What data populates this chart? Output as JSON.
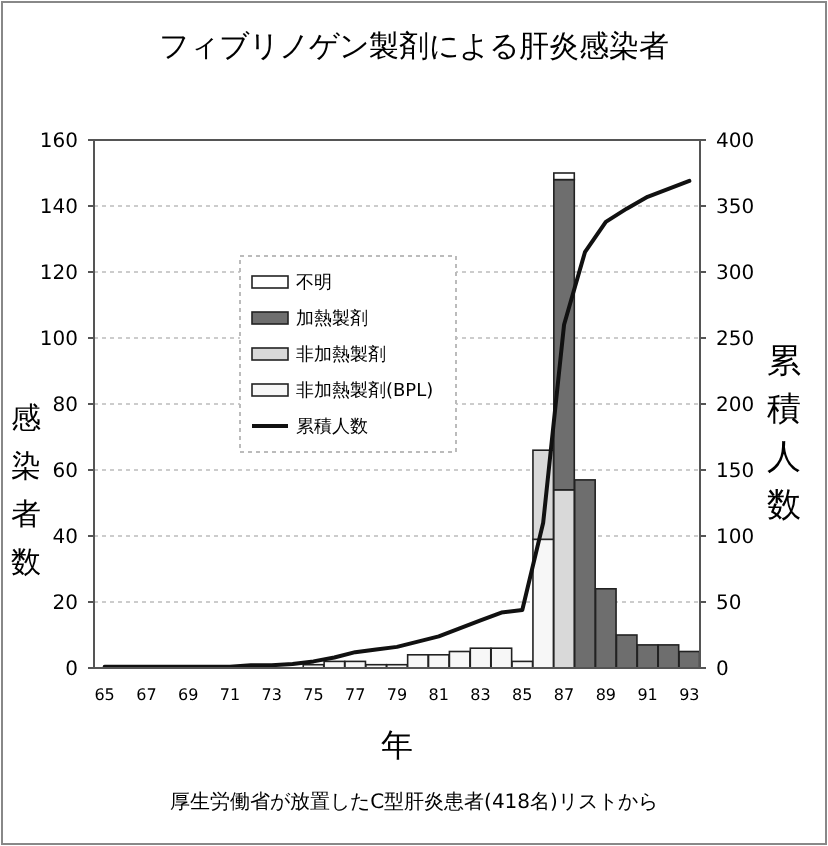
{
  "chart_data": {
    "type": "bar",
    "title": "フィブリノゲン製剤による肝炎感染者",
    "xlabel": "年",
    "ylabel": "感染者数",
    "y2label": "累積人数",
    "stacked": true,
    "grid": "y",
    "legend": "center",
    "categories": [
      "65",
      null,
      "67",
      null,
      "69",
      null,
      "71",
      null,
      "73",
      null,
      "75",
      null,
      "77",
      null,
      "79",
      null,
      "81",
      null,
      "83",
      null,
      "85",
      null,
      "87",
      null,
      "89",
      null,
      "91",
      null,
      "93"
    ],
    "series": [
      {
        "name": "非加熱製剤(BPL)",
        "color": "#f7f7f7",
        "values": [
          0,
          0,
          0,
          0,
          0,
          0,
          0,
          0,
          null,
          null,
          1,
          2,
          2,
          1,
          1,
          4,
          4,
          5,
          6,
          6,
          2,
          39,
          0,
          0,
          0,
          0,
          0,
          0,
          0
        ]
      },
      {
        "name": "非加熱製剤",
        "color": "#d9d9d9",
        "values": [
          0,
          0,
          0,
          0,
          0,
          0,
          0,
          0,
          0,
          0,
          0,
          0,
          0,
          0,
          0,
          0,
          0,
          0,
          0,
          0,
          0,
          27,
          54,
          0,
          0,
          0,
          0,
          0,
          0
        ]
      },
      {
        "name": "加熱製剤",
        "color": "#6e6e6e",
        "values": [
          0,
          0,
          0,
          0,
          0,
          0,
          0,
          0,
          0,
          0,
          0,
          0,
          0,
          0,
          0,
          0,
          0,
          0,
          0,
          0,
          0,
          0,
          94,
          57,
          24,
          10,
          7,
          7,
          5
        ]
      },
      {
        "name": "不明",
        "color": "#ffffff",
        "values": [
          0,
          0,
          0,
          0,
          0,
          0,
          0,
          0,
          0,
          0,
          0,
          0,
          0,
          0,
          0,
          0,
          0,
          0,
          0,
          0,
          0,
          0,
          2,
          0,
          0,
          0,
          0,
          0,
          0
        ]
      },
      {
        "name": "累積人数",
        "type": "line",
        "axis": "y2",
        "color": "#111111",
        "values": [
          1,
          1,
          1,
          1,
          1,
          1,
          1,
          2,
          2,
          3,
          5,
          8,
          12,
          14,
          16,
          20,
          24,
          30,
          36,
          42,
          44,
          110,
          260,
          315,
          338,
          348,
          357,
          363,
          369
        ]
      }
    ],
    "ylim": [
      0,
      160
    ],
    "yticks": [
      0,
      20,
      40,
      60,
      80,
      100,
      120,
      140,
      160
    ],
    "y2lim": [
      0,
      400
    ],
    "y2ticks": [
      0,
      50,
      100,
      150,
      200,
      250,
      300,
      350,
      400
    ],
    "annotations": [
      "厚生労働省が放置したC型肝炎患者(418名)リストから"
    ]
  }
}
